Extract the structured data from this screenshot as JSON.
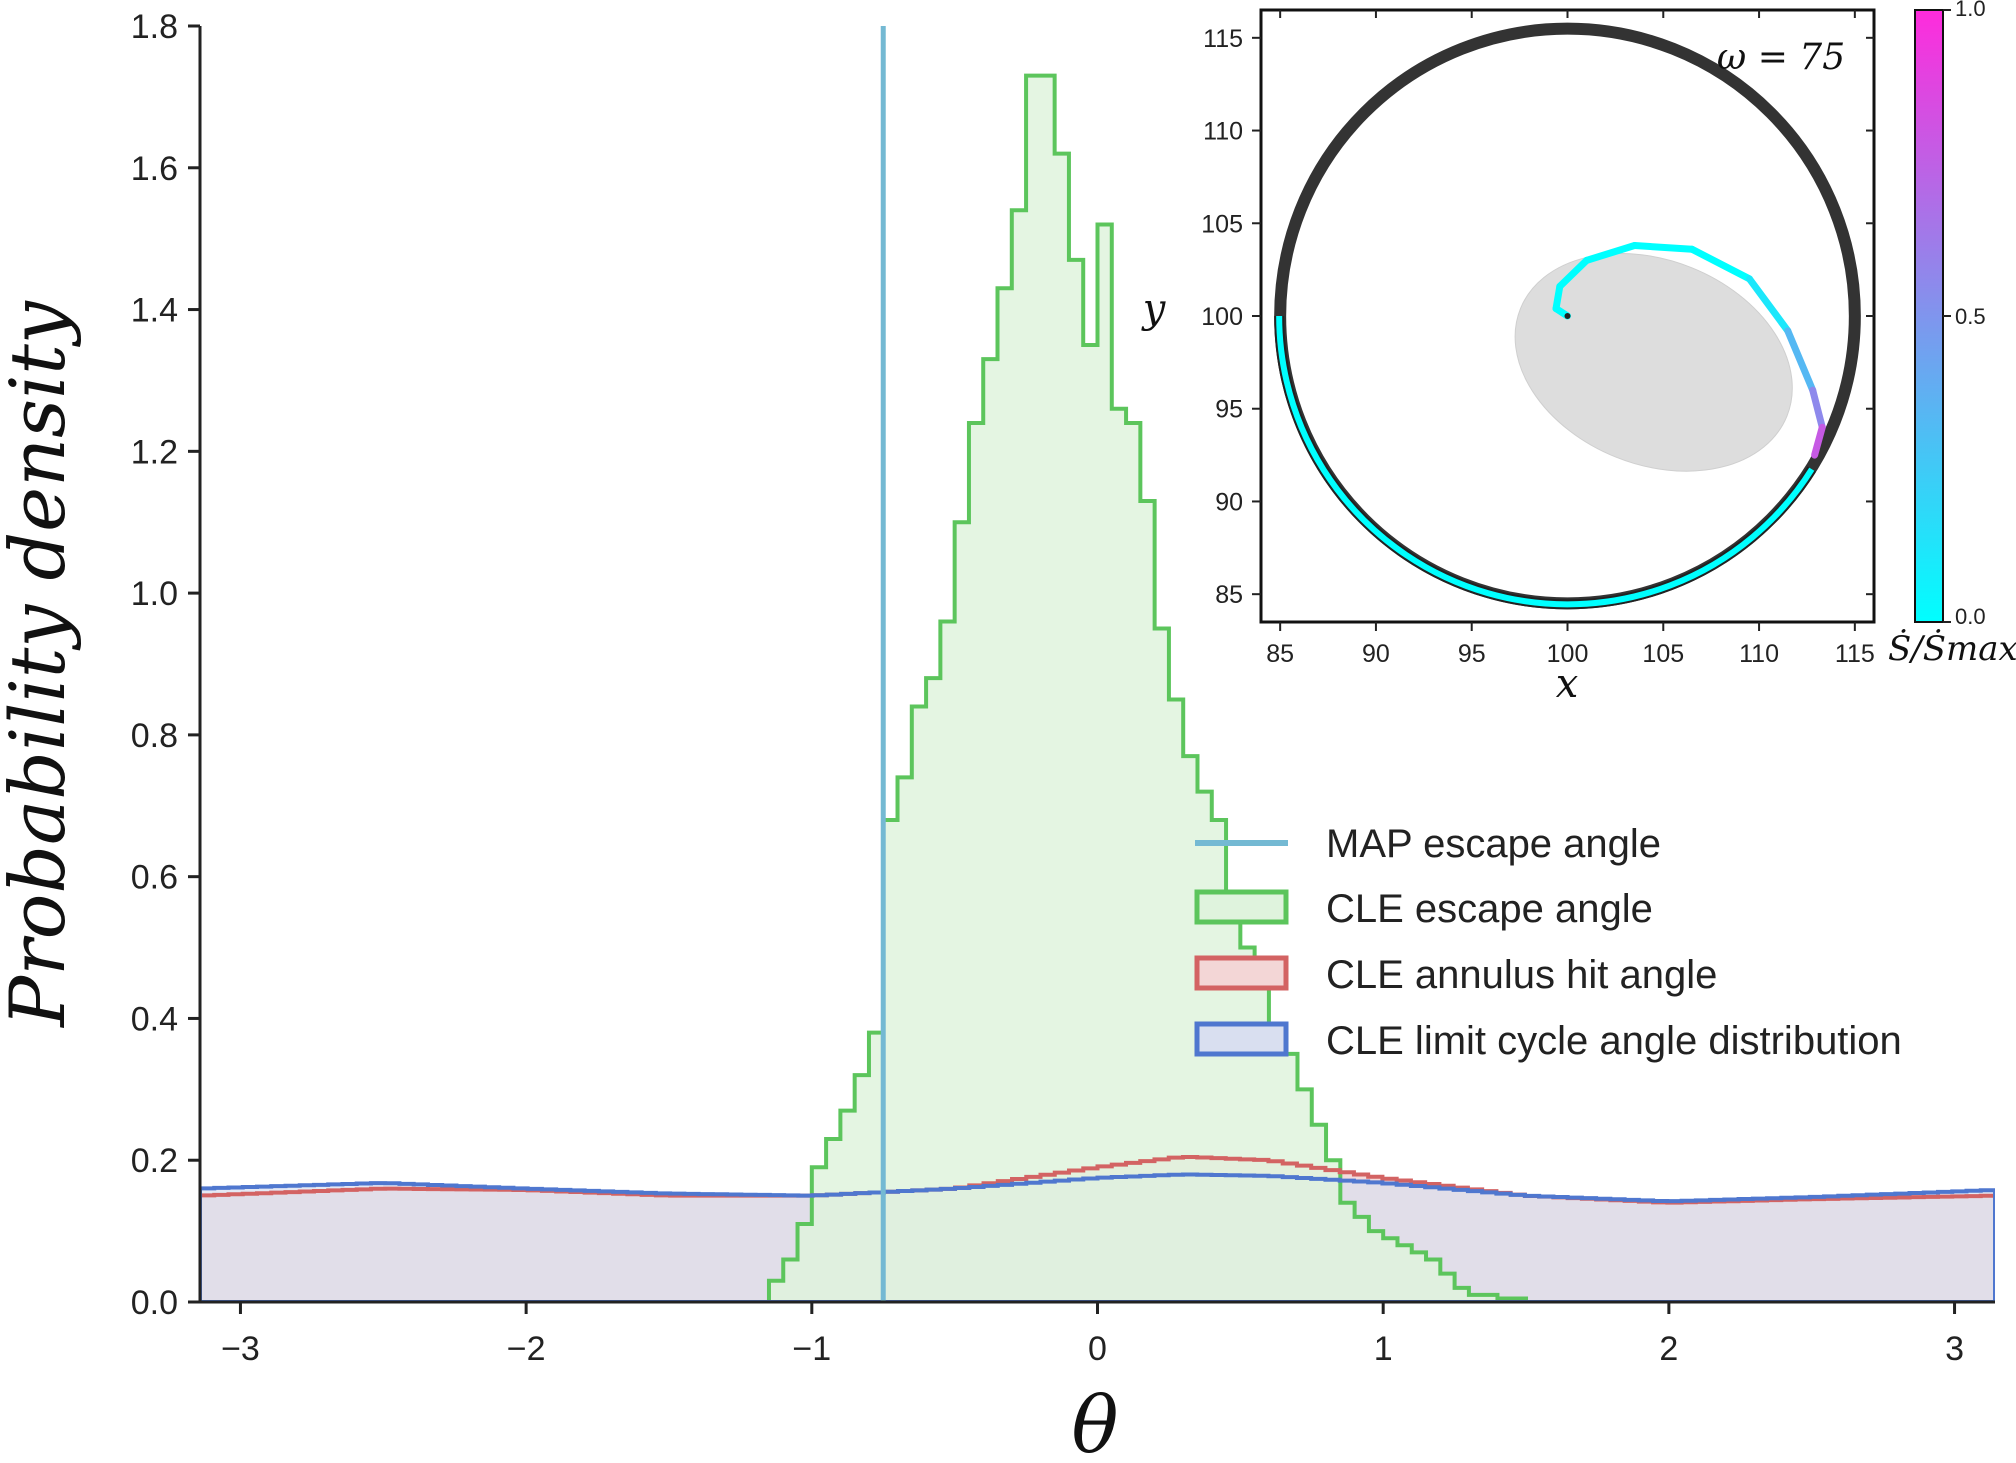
{
  "chart_data": [
    {
      "type": "histogram",
      "xlabel": "θ",
      "ylabel": "Probability density",
      "xlim": [
        -3.1416,
        3.1416
      ],
      "ylim": [
        0,
        1.8
      ],
      "xticks": [
        -3,
        -2,
        -1,
        0,
        1,
        2,
        3
      ],
      "xtick_labels": [
        "−3",
        "−2",
        "−1",
        "0",
        "1",
        "2",
        "3"
      ],
      "yticks": [
        0.0,
        0.2,
        0.4,
        0.6,
        0.8,
        1.0,
        1.2,
        1.4,
        1.6,
        1.8
      ],
      "ytick_labels": [
        "0.0",
        "0.2",
        "0.4",
        "0.6",
        "0.8",
        "1.0",
        "1.2",
        "1.4",
        "1.6",
        "1.8"
      ],
      "legend_position": "center-right",
      "series": [
        {
          "name": "MAP escape angle",
          "kind": "vline",
          "x": -0.75,
          "color": "#74b9d3"
        },
        {
          "name": "CLE escape angle",
          "kind": "step-filled",
          "color": "#5cc55c",
          "fill": "#dff3dd",
          "bin_start": -1.15,
          "bin_width": 0.05,
          "values": [
            0.03,
            0.06,
            0.11,
            0.19,
            0.23,
            0.27,
            0.32,
            0.38,
            0.68,
            0.74,
            0.84,
            0.88,
            0.96,
            1.1,
            1.24,
            1.33,
            1.43,
            1.54,
            1.73,
            1.73,
            1.62,
            1.47,
            1.35,
            1.52,
            1.26,
            1.24,
            1.13,
            0.95,
            0.85,
            0.77,
            0.72,
            0.68,
            0.55,
            0.5,
            0.45,
            0.38,
            0.35,
            0.3,
            0.25,
            0.2,
            0.14,
            0.12,
            0.1,
            0.09,
            0.08,
            0.07,
            0.06,
            0.04,
            0.02,
            0.01,
            0.01,
            0.005,
            0.005
          ]
        },
        {
          "name": "CLE annulus hit angle",
          "kind": "density-filled",
          "color": "#d36363",
          "fill": "#f3d6d6",
          "x": [
            -3.14,
            -2.5,
            -2.0,
            -1.5,
            -1.0,
            -0.5,
            0.0,
            0.3,
            0.6,
            1.0,
            1.5,
            2.0,
            2.5,
            3.14
          ],
          "values": [
            0.15,
            0.16,
            0.158,
            0.15,
            0.15,
            0.16,
            0.19,
            0.205,
            0.2,
            0.175,
            0.15,
            0.14,
            0.145,
            0.15
          ]
        },
        {
          "name": "CLE limit cycle angle distribution",
          "kind": "density-filled",
          "color": "#4f77cf",
          "fill": "#d9dff0",
          "x": [
            -3.14,
            -2.5,
            -2.0,
            -1.5,
            -1.0,
            -0.5,
            0.0,
            0.3,
            0.6,
            1.0,
            1.5,
            2.0,
            2.5,
            3.14
          ],
          "values": [
            0.16,
            0.168,
            0.16,
            0.153,
            0.15,
            0.16,
            0.175,
            0.18,
            0.178,
            0.168,
            0.15,
            0.142,
            0.148,
            0.158
          ]
        }
      ]
    },
    {
      "type": "line",
      "xlabel": "x",
      "ylabel": "y",
      "xlim": [
        84,
        116
      ],
      "ylim": [
        83.5,
        116.5
      ],
      "xticks": [
        85,
        90,
        95,
        100,
        105,
        110,
        115
      ],
      "xtick_labels": [
        "85",
        "90",
        "95",
        "100",
        "105",
        "110",
        "115"
      ],
      "yticks": [
        85,
        90,
        95,
        100,
        105,
        110,
        115
      ],
      "ytick_labels": [
        "85",
        "90",
        "95",
        "100",
        "105",
        "110",
        "115"
      ],
      "annotation": "ω = 75",
      "limit_cycle": {
        "center": [
          100,
          100
        ],
        "radius": 15,
        "color": "#333333"
      },
      "escape_path": {
        "start": [
          100,
          100
        ],
        "end": [
          112.9,
          92.5
        ],
        "color_start": "#00ffff",
        "color_end": "#ff2bdc"
      },
      "basin_region": {
        "center": [
          104.5,
          97.5
        ],
        "rx": 7.5,
        "ry": 5.5,
        "fill": "#dddddd"
      },
      "colorbar": {
        "label": "Ṡ/Ṡmax",
        "ticks": [
          0.0,
          0.5,
          1.0
        ],
        "tick_labels": [
          "0.0",
          "0.5",
          "1.0"
        ],
        "color_low": "#00ffff",
        "color_high": "#ff2bdc"
      }
    }
  ]
}
